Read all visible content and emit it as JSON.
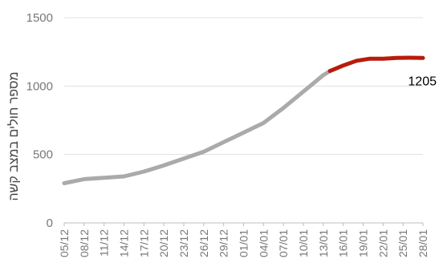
{
  "chart_data": {
    "type": "line",
    "title": "",
    "xlabel": "",
    "ylabel": "מספר חולים במצב קשה",
    "ylim": [
      0,
      1500
    ],
    "yticks": [
      0,
      500,
      1000,
      1500
    ],
    "grid": true,
    "legend": "none",
    "x_tick_labels": [
      "05/12",
      "08/12",
      "11/12",
      "14/12",
      "17/12",
      "20/12",
      "23/12",
      "26/12",
      "29/12",
      "01/01",
      "04/01",
      "07/01",
      "10/01",
      "13/01",
      "16/01",
      "19/01",
      "22/01",
      "25/01",
      "28/01"
    ],
    "x_start_date": "05/12",
    "x_tick_step_days": 3,
    "series": [
      {
        "color": "#aaaaaa",
        "x_days": [
          0,
          3,
          6,
          9,
          12,
          15,
          18,
          21,
          24,
          27,
          30,
          33,
          36,
          39,
          40
        ],
        "values": [
          290,
          320,
          330,
          340,
          375,
          420,
          470,
          520,
          590,
          660,
          730,
          840,
          960,
          1080,
          1110
        ]
      },
      {
        "color": "#b71c0c",
        "x_days": [
          40,
          42,
          44,
          46,
          48,
          50,
          52,
          54
        ],
        "values": [
          1110,
          1150,
          1185,
          1200,
          1200,
          1205,
          1207,
          1205
        ]
      }
    ],
    "annotations": [
      {
        "text": "1205",
        "x_day": 54,
        "value": 1205
      }
    ]
  }
}
